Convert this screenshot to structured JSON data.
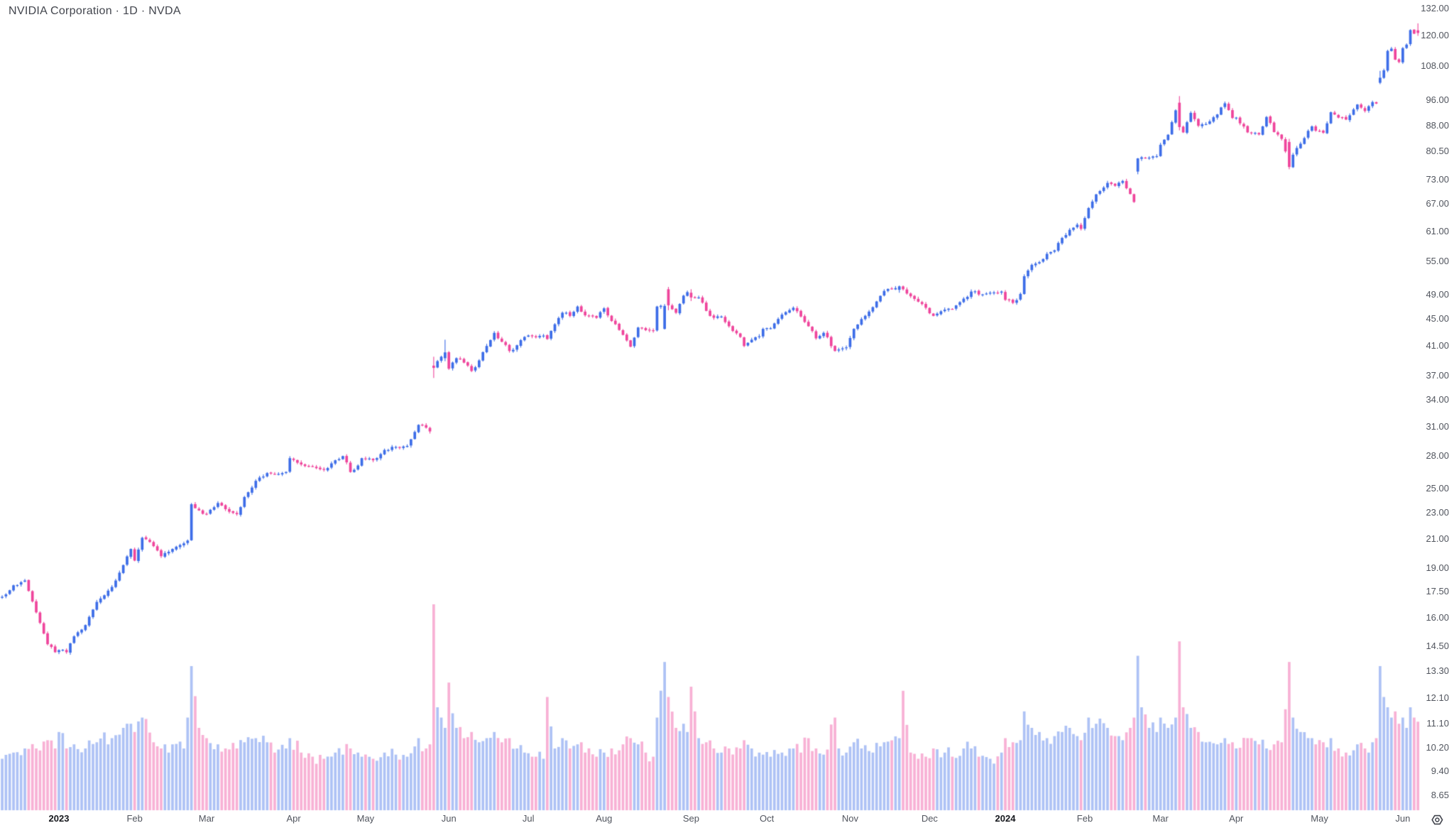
{
  "header": {
    "symbol_title": "NVIDIA Corporation · 1D · NVDA"
  },
  "colors": {
    "up": "#3d6de8",
    "down": "#ef459c",
    "volume_alpha": 0.42,
    "axis_text": "#51555e",
    "axis_text_strong": "#16181d",
    "title_text": "#42454d",
    "background": "#ffffff"
  },
  "chart_data": {
    "type": "candlestick",
    "subpanels": [
      "volume"
    ],
    "symbol": "NVDA",
    "company": "NVIDIA Corporation",
    "interval": "1D",
    "scale": "logarithmic",
    "grid": "off",
    "date_range": "Dec 2022 – Jun 2024",
    "price_axis_ticks": [
      "132.00",
      "120.00",
      "108.00",
      "96.00",
      "88.00",
      "80.50",
      "73.00",
      "67.00",
      "61.00",
      "55.00",
      "49.00",
      "45.00",
      "41.00",
      "37.00",
      "34.00",
      "31.00",
      "28.00",
      "25.00",
      "23.00",
      "21.00",
      "19.00",
      "17.50",
      "16.00",
      "14.50",
      "13.30",
      "12.10",
      "11.10",
      "10.20",
      "9.40",
      "8.65"
    ],
    "time_axis_labels": [
      {
        "label": "2023",
        "index": 13,
        "bold": true
      },
      {
        "label": "Feb",
        "index": 33
      },
      {
        "label": "Mar",
        "index": 52
      },
      {
        "label": "Apr",
        "index": 75
      },
      {
        "label": "May",
        "index": 94
      },
      {
        "label": "Jun",
        "index": 116
      },
      {
        "label": "Jul",
        "index": 137
      },
      {
        "label": "Aug",
        "index": 157
      },
      {
        "label": "Sep",
        "index": 180
      },
      {
        "label": "Oct",
        "index": 200
      },
      {
        "label": "Nov",
        "index": 222
      },
      {
        "label": "Dec",
        "index": 243
      },
      {
        "label": "2024",
        "index": 263,
        "bold": true
      },
      {
        "label": "Feb",
        "index": 284
      },
      {
        "label": "Mar",
        "index": 304
      },
      {
        "label": "Apr",
        "index": 324
      },
      {
        "label": "May",
        "index": 346
      },
      {
        "label": "Jun",
        "index": 368
      }
    ],
    "first_candle_index": -2,
    "last_candle_index": 372,
    "anchors_format": [
      "candle_index",
      "close",
      "relative_volume"
    ],
    "anchors": [
      [
        -2,
        17.2,
        0.25
      ],
      [
        1,
        17.9,
        0.28
      ],
      [
        4,
        18.2,
        0.3
      ],
      [
        7,
        16.3,
        0.3
      ],
      [
        10,
        14.6,
        0.34
      ],
      [
        12,
        14.2,
        0.3
      ],
      [
        13,
        14.3,
        0.38
      ],
      [
        15,
        14.2,
        0.3
      ],
      [
        17,
        15.0,
        0.32
      ],
      [
        20,
        15.6,
        0.3
      ],
      [
        23,
        16.9,
        0.33
      ],
      [
        27,
        17.8,
        0.35
      ],
      [
        30,
        19.2,
        0.4
      ],
      [
        32,
        20.3,
        0.42
      ],
      [
        33,
        19.5,
        0.38
      ],
      [
        35,
        21.1,
        0.45
      ],
      [
        38,
        20.5,
        0.33
      ],
      [
        40,
        19.8,
        0.3
      ],
      [
        43,
        20.3,
        0.32
      ],
      [
        46,
        20.7,
        0.3
      ],
      [
        47,
        20.9,
        0.45
      ],
      [
        48,
        23.7,
        0.7
      ],
      [
        50,
        23.2,
        0.4
      ],
      [
        52,
        22.9,
        0.35
      ],
      [
        55,
        23.8,
        0.32
      ],
      [
        57,
        23.3,
        0.3
      ],
      [
        60,
        22.9,
        0.3
      ],
      [
        62,
        24.3,
        0.33
      ],
      [
        65,
        25.7,
        0.35
      ],
      [
        68,
        26.4,
        0.33
      ],
      [
        70,
        26.3,
        0.28
      ],
      [
        73,
        26.5,
        0.3
      ],
      [
        74,
        27.8,
        0.35
      ],
      [
        77,
        27.2,
        0.28
      ],
      [
        80,
        27.0,
        0.26
      ],
      [
        83,
        26.7,
        0.25
      ],
      [
        86,
        27.6,
        0.28
      ],
      [
        88,
        28.0,
        0.27
      ],
      [
        90,
        26.5,
        0.3
      ],
      [
        92,
        27.1,
        0.28
      ],
      [
        93,
        27.8,
        0.26
      ],
      [
        96,
        27.6,
        0.25
      ],
      [
        99,
        28.6,
        0.28
      ],
      [
        102,
        28.9,
        0.27
      ],
      [
        105,
        29.0,
        0.26
      ],
      [
        108,
        31.2,
        0.35
      ],
      [
        110,
        30.9,
        0.3
      ],
      [
        111,
        30.5,
        0.32
      ],
      [
        112,
        38.0,
        1.0
      ],
      [
        113,
        38.9,
        0.5
      ],
      [
        114,
        39.5,
        0.45
      ],
      [
        115,
        40.1,
        0.4
      ],
      [
        116,
        37.9,
        0.62
      ],
      [
        118,
        39.3,
        0.4
      ],
      [
        120,
        38.7,
        0.35
      ],
      [
        122,
        37.6,
        0.38
      ],
      [
        124,
        39.0,
        0.33
      ],
      [
        126,
        41.0,
        0.35
      ],
      [
        128,
        42.9,
        0.38
      ],
      [
        130,
        41.6,
        0.33
      ],
      [
        132,
        40.3,
        0.35
      ],
      [
        134,
        41.1,
        0.3
      ],
      [
        136,
        42.3,
        0.28
      ],
      [
        138,
        42.4,
        0.26
      ],
      [
        141,
        42.5,
        0.25
      ],
      [
        142,
        42.0,
        0.55
      ],
      [
        144,
        44.2,
        0.3
      ],
      [
        146,
        46.0,
        0.35
      ],
      [
        148,
        45.5,
        0.3
      ],
      [
        150,
        47.0,
        0.32
      ],
      [
        152,
        45.6,
        0.28
      ],
      [
        155,
        45.2,
        0.26
      ],
      [
        157,
        46.7,
        0.28
      ],
      [
        159,
        44.7,
        0.3
      ],
      [
        162,
        42.6,
        0.32
      ],
      [
        164,
        40.9,
        0.35
      ],
      [
        166,
        43.7,
        0.32
      ],
      [
        168,
        43.3,
        0.28
      ],
      [
        170,
        43.2,
        0.26
      ],
      [
        171,
        47.0,
        0.45
      ],
      [
        173,
        47.1,
        0.72
      ],
      [
        174,
        47.2,
        0.55
      ],
      [
        176,
        46.0,
        0.4
      ],
      [
        178,
        48.8,
        0.42
      ],
      [
        179,
        49.4,
        0.38
      ],
      [
        180,
        48.5,
        0.6
      ],
      [
        182,
        48.5,
        0.35
      ],
      [
        184,
        46.3,
        0.33
      ],
      [
        186,
        45.2,
        0.3
      ],
      [
        188,
        45.4,
        0.28
      ],
      [
        190,
        43.9,
        0.3
      ],
      [
        193,
        42.3,
        0.3
      ],
      [
        194,
        41.0,
        0.34
      ],
      [
        196,
        41.9,
        0.3
      ],
      [
        198,
        42.4,
        0.28
      ],
      [
        199,
        43.5,
        0.27
      ],
      [
        201,
        43.6,
        0.26
      ],
      [
        204,
        45.7,
        0.28
      ],
      [
        207,
        46.8,
        0.3
      ],
      [
        209,
        45.4,
        0.28
      ],
      [
        211,
        43.9,
        0.35
      ],
      [
        213,
        42.1,
        0.3
      ],
      [
        215,
        42.9,
        0.27
      ],
      [
        218,
        40.3,
        0.45
      ],
      [
        219,
        40.5,
        0.3
      ],
      [
        221,
        40.8,
        0.28
      ],
      [
        223,
        43.5,
        0.33
      ],
      [
        225,
        45.0,
        0.3
      ],
      [
        228,
        46.9,
        0.28
      ],
      [
        231,
        49.6,
        0.33
      ],
      [
        235,
        50.4,
        0.35
      ],
      [
        236,
        49.9,
        0.58
      ],
      [
        238,
        48.7,
        0.28
      ],
      [
        240,
        47.8,
        0.25
      ],
      [
        242,
        46.8,
        0.26
      ],
      [
        244,
        45.5,
        0.3
      ],
      [
        247,
        46.5,
        0.28
      ],
      [
        249,
        46.6,
        0.26
      ],
      [
        252,
        48.3,
        0.3
      ],
      [
        254,
        49.5,
        0.3
      ],
      [
        256,
        49.0,
        0.26
      ],
      [
        259,
        49.3,
        0.25
      ],
      [
        262,
        49.5,
        0.28
      ],
      [
        263,
        48.1,
        0.35
      ],
      [
        265,
        47.6,
        0.33
      ],
      [
        267,
        49.1,
        0.34
      ],
      [
        268,
        52.2,
        0.48
      ],
      [
        270,
        54.3,
        0.4
      ],
      [
        272,
        54.8,
        0.38
      ],
      [
        274,
        56.4,
        0.35
      ],
      [
        276,
        57.1,
        0.36
      ],
      [
        278,
        59.6,
        0.38
      ],
      [
        280,
        61.3,
        0.4
      ],
      [
        282,
        62.4,
        0.36
      ],
      [
        283,
        61.5,
        0.34
      ],
      [
        285,
        66.1,
        0.45
      ],
      [
        287,
        69.3,
        0.42
      ],
      [
        290,
        72.1,
        0.4
      ],
      [
        292,
        71.4,
        0.36
      ],
      [
        294,
        72.6,
        0.34
      ],
      [
        296,
        69.4,
        0.4
      ],
      [
        297,
        67.5,
        0.45
      ],
      [
        298,
        78.5,
        0.75
      ],
      [
        299,
        78.8,
        0.5
      ],
      [
        301,
        78.7,
        0.4
      ],
      [
        303,
        79.1,
        0.38
      ],
      [
        304,
        82.3,
        0.45
      ],
      [
        306,
        85.2,
        0.4
      ],
      [
        308,
        92.7,
        0.45
      ],
      [
        309,
        87.5,
        0.82
      ],
      [
        310,
        85.9,
        0.5
      ],
      [
        312,
        91.9,
        0.4
      ],
      [
        314,
        87.9,
        0.38
      ],
      [
        316,
        88.4,
        0.33
      ],
      [
        319,
        91.4,
        0.32
      ],
      [
        321,
        95.0,
        0.35
      ],
      [
        323,
        90.3,
        0.33
      ],
      [
        324,
        90.4,
        0.3
      ],
      [
        327,
        85.9,
        0.35
      ],
      [
        330,
        85.3,
        0.32
      ],
      [
        332,
        90.6,
        0.3
      ],
      [
        334,
        86.0,
        0.32
      ],
      [
        336,
        84.0,
        0.33
      ],
      [
        338,
        76.2,
        0.72
      ],
      [
        339,
        79.5,
        0.45
      ],
      [
        341,
        82.6,
        0.38
      ],
      [
        344,
        87.7,
        0.35
      ],
      [
        345,
        86.4,
        0.32
      ],
      [
        347,
        85.8,
        0.33
      ],
      [
        349,
        92.1,
        0.35
      ],
      [
        351,
        90.4,
        0.3
      ],
      [
        353,
        89.8,
        0.28
      ],
      [
        356,
        94.6,
        0.32
      ],
      [
        358,
        92.5,
        0.3
      ],
      [
        360,
        95.4,
        0.33
      ],
      [
        361,
        94.9,
        0.35
      ],
      [
        362,
        103.8,
        0.7
      ],
      [
        363,
        106.5,
        0.55
      ],
      [
        364,
        113.9,
        0.5
      ],
      [
        365,
        114.8,
        0.45
      ],
      [
        366,
        110.5,
        0.48
      ],
      [
        367,
        109.6,
        0.42
      ],
      [
        368,
        115.0,
        0.45
      ],
      [
        369,
        116.4,
        0.4
      ],
      [
        370,
        122.4,
        0.5
      ],
      [
        371,
        120.9,
        0.45
      ],
      [
        372,
        121.2,
        0.43
      ]
    ],
    "special_candles_format": [
      "open",
      "high",
      "low",
      "close"
    ],
    "special_candles": {
      "112": [
        38.3,
        39.5,
        36.7,
        38.0
      ],
      "115": [
        39.3,
        41.9,
        38.9,
        40.1
      ],
      "173": [
        43.5,
        47.4,
        43.4,
        47.1
      ],
      "174": [
        49.9,
        50.3,
        46.4,
        47.2
      ],
      "180": [
        49.3,
        49.9,
        47.9,
        48.5
      ],
      "235": [
        49.8,
        50.55,
        49.3,
        50.4
      ],
      "298": [
        75.0,
        78.6,
        74.3,
        78.5
      ],
      "309": [
        95.2,
        97.4,
        86.5,
        87.5
      ],
      "338": [
        83.1,
        84.0,
        75.6,
        76.2
      ],
      "362": [
        102.0,
        106.3,
        101.5,
        103.8
      ],
      "372": [
        122.3,
        125.3,
        120.0,
        121.2
      ]
    }
  }
}
